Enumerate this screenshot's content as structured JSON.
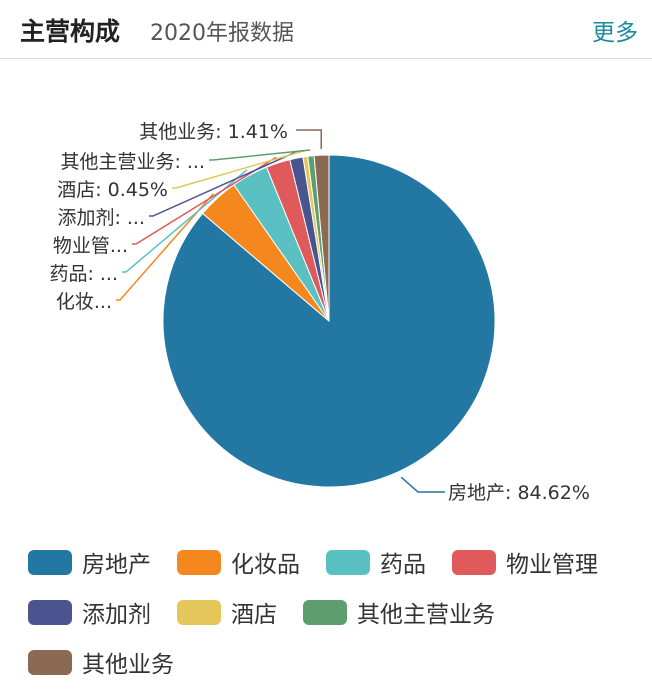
{
  "header": {
    "title": "主营构成",
    "subtitle": "2020年报数据",
    "more": "更多"
  },
  "chart_data": {
    "type": "pie",
    "categories": [
      "房地产",
      "化妆品",
      "药品",
      "物业管理",
      "添加剂",
      "酒店",
      "其他主营业务",
      "其他业务"
    ],
    "values": [
      84.62,
      4.0,
      3.5,
      2.3,
      1.26,
      0.45,
      0.6,
      1.41
    ],
    "colors": [
      "#2277a3",
      "#f5871f",
      "#5bc0c2",
      "#e0595b",
      "#4a5590",
      "#e5c65a",
      "#5e9e6e",
      "#8a6a52"
    ],
    "labels": [
      "房地产: 84.62%",
      "化妆...",
      "药品: ...",
      "物业管...",
      "添加剂: ...",
      "酒店: 0.45%",
      "其他主营业务: ...",
      "其他业务: 1.41%"
    ],
    "legend_placement": "bottom"
  }
}
